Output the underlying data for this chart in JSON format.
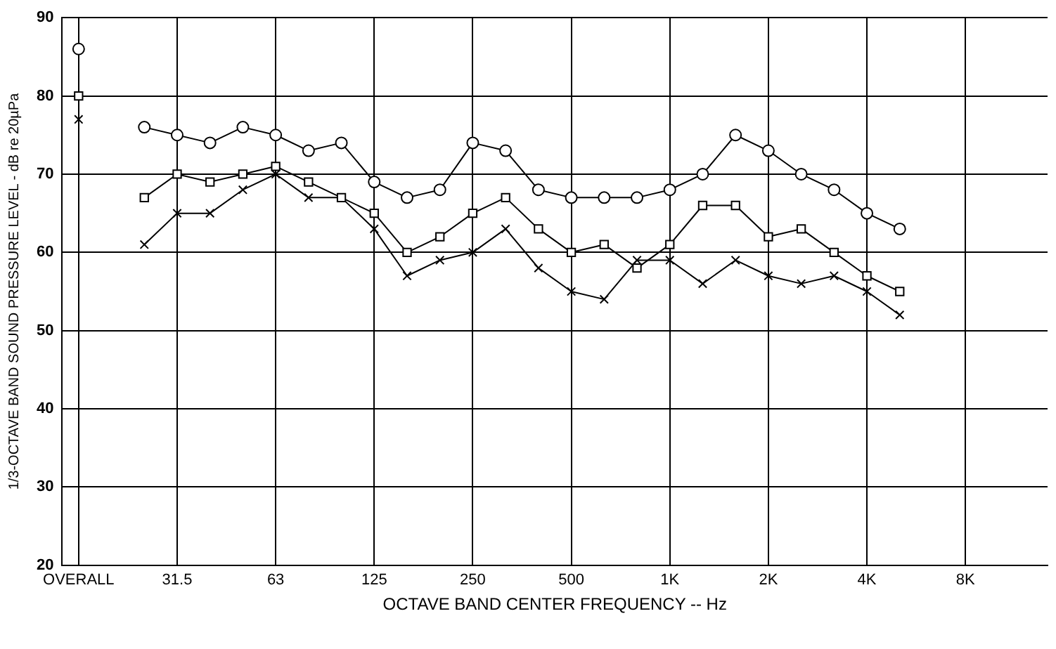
{
  "chart_data": {
    "type": "line",
    "xlabel": "OCTAVE BAND CENTER FREQUENCY -- Hz",
    "ylabel": "1/3-OCTAVE BAND SOUND PRESSURE LEVEL - dB re 20µPa",
    "categories": [
      "OVERALL",
      null,
      null,
      "31.5",
      null,
      null,
      "63",
      null,
      null,
      "125",
      null,
      null,
      "250",
      null,
      null,
      "500",
      null,
      null,
      "1K",
      null,
      null,
      "2K",
      null,
      null,
      "4K",
      null,
      null,
      "8K",
      null,
      null
    ],
    "series": [
      {
        "color": "#000000",
        "marker": "circle",
        "values": [
          86,
          null,
          76,
          75,
          74,
          76,
          75,
          73,
          74,
          69,
          67,
          68,
          74,
          73,
          68,
          67,
          67,
          67,
          68,
          70,
          75,
          73,
          70,
          68,
          65,
          63,
          null,
          null,
          null,
          null
        ]
      },
      {
        "color": "#000000",
        "marker": "square",
        "values": [
          80,
          null,
          67,
          70,
          69,
          70,
          71,
          69,
          67,
          65,
          60,
          62,
          65,
          67,
          63,
          60,
          61,
          58,
          61,
          66,
          66,
          62,
          63,
          60,
          57,
          55,
          null,
          null,
          null,
          null
        ]
      },
      {
        "color": "#000000",
        "marker": "cross",
        "values": [
          77,
          null,
          61,
          65,
          65,
          68,
          70,
          67,
          67,
          63,
          57,
          59,
          60,
          63,
          58,
          55,
          54,
          59,
          59,
          56,
          59,
          57,
          56,
          57,
          55,
          52,
          null,
          null,
          null,
          null
        ]
      }
    ],
    "ylim": [
      20,
      90
    ],
    "yticks": [
      20,
      30,
      40,
      50,
      60,
      70,
      80,
      90
    ],
    "grid": true,
    "legend": false
  }
}
